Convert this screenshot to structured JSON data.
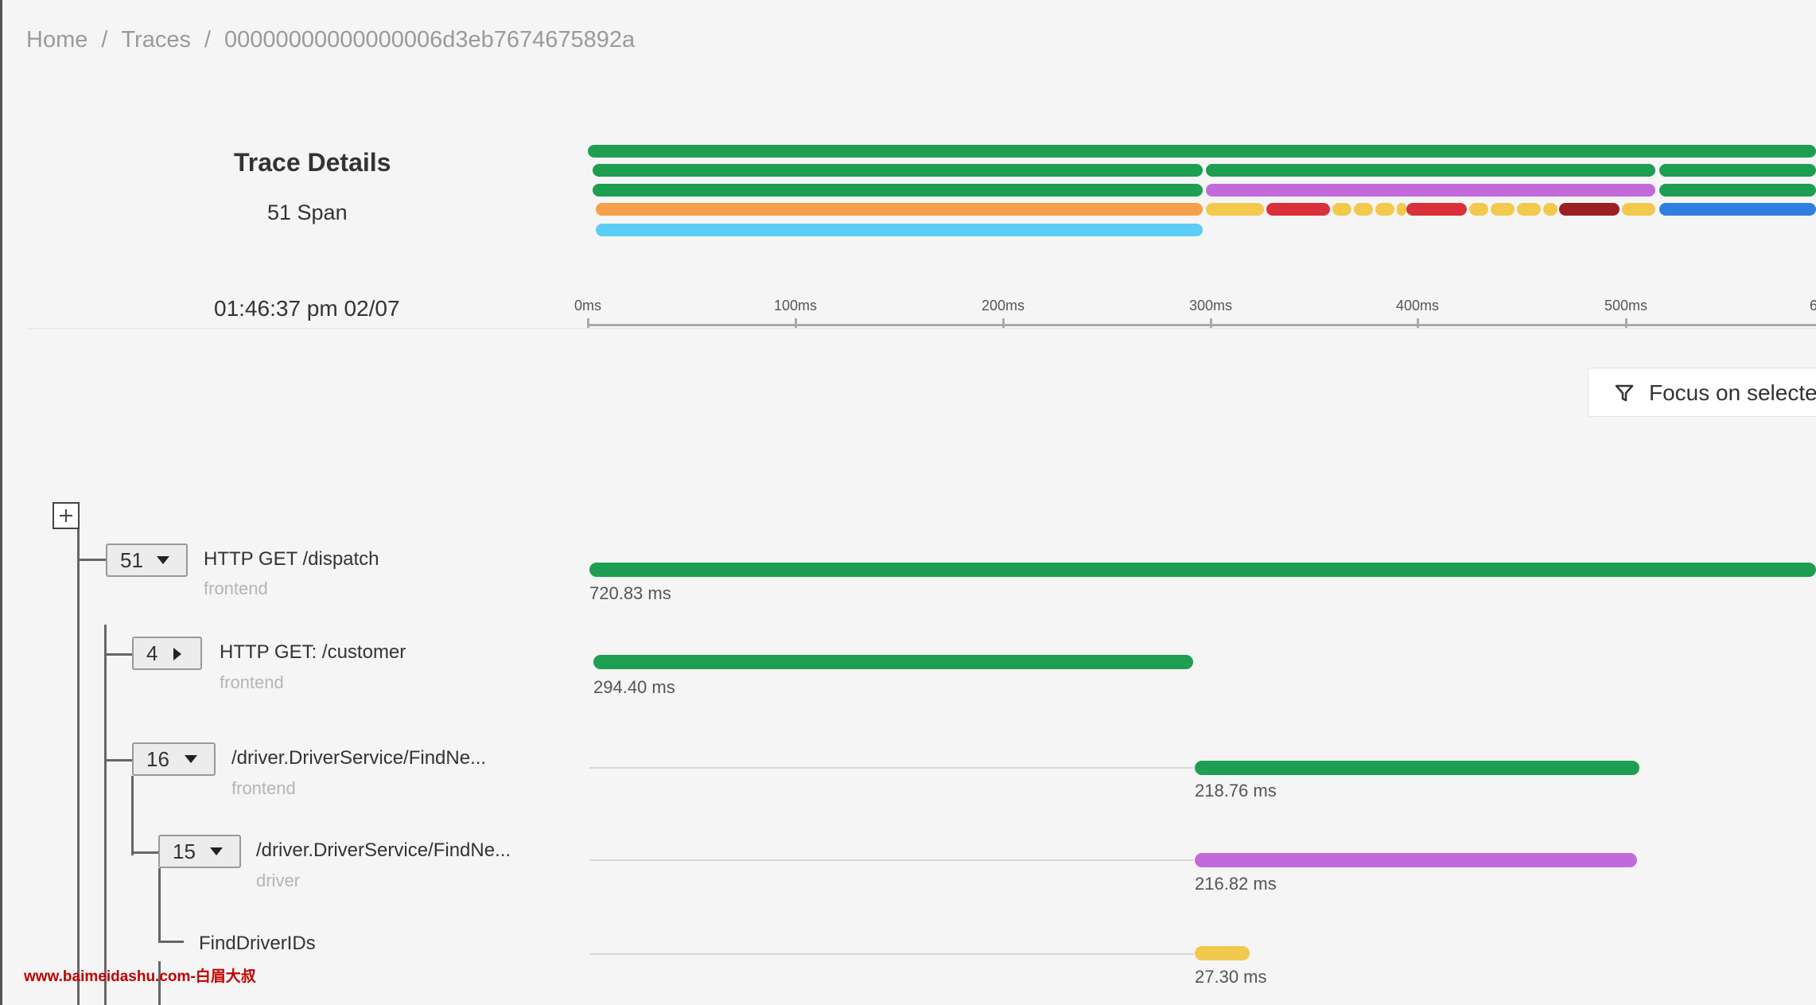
{
  "breadcrumb": {
    "home": "Home",
    "traces": "Traces",
    "trace_id": "00000000000000006d3eb7674675892a",
    "separator": "/"
  },
  "trace": {
    "title": "Trace Details",
    "span_count": "51 Span",
    "timestamp": "01:46:37 pm 02/07"
  },
  "timeline": {
    "ticks": [
      "0ms",
      "100ms",
      "200ms",
      "300ms",
      "400ms",
      "500ms"
    ],
    "trailing_tick": "6"
  },
  "colors": {
    "frontend": "#1e9e50",
    "driver": "#c26adb",
    "orange": "#f5a04a",
    "yellow": "#f2c94c",
    "red": "#d9303a",
    "dark_red": "#9c1f24",
    "blue": "#2f7fe0",
    "cyan": "#5ccdf5"
  },
  "focus_button": {
    "label": "Focus on selected",
    "icon": "filter-icon"
  },
  "tree": {
    "expand_icon": "plus-square-icon",
    "spans": [
      {
        "count": "51",
        "caret": "down",
        "name": "HTTP GET /dispatch",
        "service": "frontend",
        "duration": "720.83 ms"
      },
      {
        "count": "4",
        "caret": "right",
        "name": "HTTP GET: /customer",
        "service": "frontend",
        "duration": "294.40 ms"
      },
      {
        "count": "16",
        "caret": "down",
        "name": "/driver.DriverService/FindNe...",
        "service": "frontend",
        "duration": "218.76 ms"
      },
      {
        "count": "15",
        "caret": "down",
        "name": "/driver.DriverService/FindNe...",
        "service": "driver",
        "duration": "216.82 ms"
      },
      {
        "name": "FindDriverIDs",
        "duration": "27.30 ms"
      }
    ]
  },
  "watermark": "www.baimeidashu.com-白眉大叔"
}
